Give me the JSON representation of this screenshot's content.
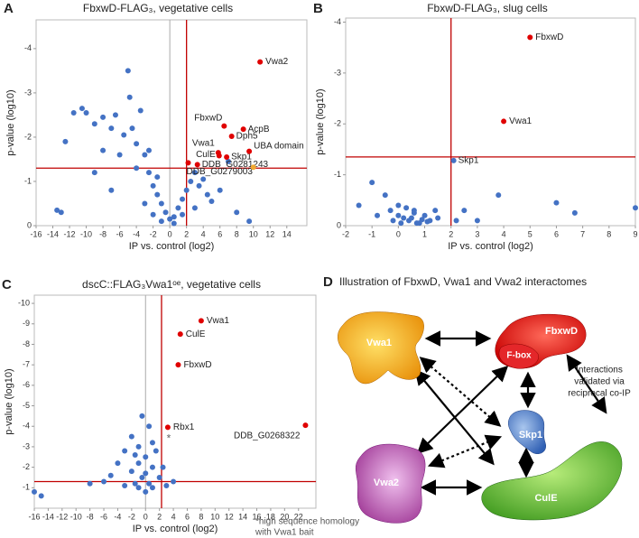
{
  "chart_data": [
    {
      "type": "scatter",
      "panel": "A",
      "title": "FbxwD-FLAG₃, vegetative cells",
      "x_label": "IP vs. control (log2)",
      "y_label": "p-value (log10)",
      "xlim": [
        -16,
        16.4
      ],
      "ylim": [
        0,
        -4.65
      ],
      "xticks": [
        -16,
        -14,
        -12,
        -10,
        -8,
        -6,
        -4,
        -2,
        0,
        2,
        4,
        6,
        8,
        10,
        12,
        14
      ],
      "yticks": [
        0,
        -1,
        -2,
        -3,
        -4
      ],
      "threshold_x": 2,
      "threshold_y": -1.3,
      "threshold_color": "#c00000",
      "zero_line": true,
      "series": [
        {
          "color": "#4472c4",
          "x": [
            -13.5,
            -13,
            -12.5,
            -11.5,
            -10.5,
            -10,
            -9,
            -8,
            -7,
            -6.5,
            -5.5,
            -5,
            -4.8,
            -4.5,
            -4,
            -3.5,
            -3,
            -2.5,
            -2,
            -1.5,
            -1,
            -0.5,
            0,
            0.5,
            1,
            1.5,
            2,
            2.5,
            3,
            3.5,
            4,
            4.5,
            5,
            6,
            7,
            -3,
            -2,
            -1,
            0.5,
            1.5,
            -4,
            -6,
            -8,
            -2.5,
            -1.5,
            3,
            8,
            9.5,
            -7,
            -9
          ],
          "values": [
            -0.35,
            -0.3,
            -1.9,
            -2.55,
            -2.65,
            -2.55,
            -2.3,
            -2.45,
            -2.2,
            -2.5,
            -2.05,
            -3.5,
            -2.9,
            -2.2,
            -1.85,
            -2.6,
            -1.6,
            -1.2,
            -0.9,
            -0.7,
            -0.5,
            -0.3,
            -0.15,
            -0.2,
            -0.4,
            -0.6,
            -0.8,
            -1.0,
            -1.2,
            -0.9,
            -1.05,
            -0.7,
            -0.55,
            -0.8,
            -1.45,
            -0.5,
            -0.25,
            -0.1,
            -0.05,
            -0.25,
            -1.3,
            -1.6,
            -1.7,
            -1.7,
            -1.1,
            -0.4,
            -0.3,
            -0.1,
            -0.8,
            -1.2
          ]
        },
        {
          "color": "#e00000",
          "x": [
            10.8,
            6.5,
            8.8,
            7.4,
            5.8,
            5.9,
            6.8,
            9.5,
            3.3,
            2.2
          ],
          "values": [
            -3.7,
            -2.25,
            -2.18,
            -2.02,
            -1.65,
            -1.58,
            -1.55,
            -1.68,
            -1.38,
            -1.42
          ],
          "labels": [
            "Vwa2",
            "FbxwD",
            "AcpB",
            "Dph5",
            "Vwa1",
            "CulE",
            "Skp1",
            "UBA domain",
            "DDB_G0281243",
            "DDB_G0279003"
          ]
        },
        {
          "color": "#f0a830",
          "x": [
            10
          ],
          "values": [
            -1.32
          ]
        }
      ]
    },
    {
      "type": "scatter",
      "panel": "B",
      "title": "FbxwD-FLAG₃, slug cells",
      "x_label": "IP vs. control (log2)",
      "y_label": "p-value (log10)",
      "xlim": [
        -2,
        9
      ],
      "ylim": [
        0,
        -4.08
      ],
      "xticks": [
        -2,
        -1,
        0,
        1,
        2,
        3,
        4,
        5,
        6,
        7,
        8,
        9
      ],
      "yticks": [
        0,
        -1,
        -2,
        -3,
        -4
      ],
      "threshold_x": 2,
      "threshold_y": -1.35,
      "threshold_color": "#c00000",
      "zero_line": false,
      "series": [
        {
          "color": "#4472c4",
          "x": [
            -1.5,
            -1,
            -0.5,
            -0.3,
            0,
            0.2,
            0.4,
            0.6,
            0.8,
            1,
            1.2,
            1.4,
            0.1,
            0.3,
            0.5,
            0.7,
            0.9,
            1.1,
            -0.2,
            0,
            0.6,
            1.5,
            2.5,
            3.8,
            6,
            6.7,
            9,
            2.2,
            3,
            -0.8
          ],
          "values": [
            -0.4,
            -0.85,
            -0.6,
            -0.3,
            -0.2,
            -0.15,
            -0.1,
            -0.25,
            -0.05,
            -0.2,
            -0.1,
            -0.3,
            -0.05,
            -0.35,
            -0.15,
            -0.05,
            -0.12,
            -0.08,
            -0.1,
            -0.4,
            -0.3,
            -0.15,
            -0.3,
            -0.6,
            -0.45,
            -0.25,
            -0.35,
            -0.1,
            -0.1,
            -0.2
          ]
        },
        {
          "color": "#4472c4",
          "x": [
            2.1
          ],
          "values": [
            -1.28
          ],
          "labels": [
            "Skp1"
          ]
        },
        {
          "color": "#e00000",
          "x": [
            5,
            4
          ],
          "values": [
            -3.7,
            -2.05
          ],
          "labels": [
            "FbxwD",
            "Vwa1"
          ]
        }
      ]
    },
    {
      "type": "scatter",
      "panel": "C",
      "title": "dscC::FLAG₃Vwa1ᵒᵉ, vegetative cells",
      "x_label": "IP vs. control (log2)",
      "y_label": "p-value (log10)",
      "xlim": [
        -16,
        24.5
      ],
      "ylim": [
        0,
        -10.4
      ],
      "xticks": [
        -16,
        -14,
        -12,
        -10,
        -8,
        -6,
        -4,
        -2,
        0,
        2,
        4,
        6,
        8,
        10,
        12,
        14,
        16,
        18,
        20,
        22
      ],
      "yticks": [
        -1,
        -2,
        -3,
        -4,
        -5,
        -6,
        -7,
        -8,
        -9,
        -10
      ],
      "threshold_x": 2.3,
      "threshold_y": -1.3,
      "threshold_color": "#c00000",
      "zero_line": true,
      "annotation": "*",
      "footnote": [
        "*high sequence homology",
        "with Vwa1 bait"
      ],
      "series": [
        {
          "color": "#4472c4",
          "x": [
            -16,
            -15,
            -5,
            -4,
            -3,
            -2,
            -1,
            0,
            1,
            1,
            -0.5,
            0.5,
            -1.5,
            0,
            2,
            2.5,
            3,
            -2,
            -1,
            0.5,
            -0.5,
            -1.5,
            1.5,
            -6,
            -3,
            4,
            -8,
            0,
            1,
            -1
          ],
          "values": [
            -0.8,
            -0.6,
            -1.6,
            -2.2,
            -2.8,
            -3.5,
            -3,
            -2.5,
            -2,
            -3.2,
            -1.5,
            -1.2,
            -1.2,
            -0.8,
            -1.5,
            -2,
            -1.1,
            -1.8,
            -2.2,
            -4,
            -4.5,
            -2.6,
            -2.8,
            -1.3,
            -1.1,
            -1.3,
            -1.2,
            -1.7,
            -1.0,
            -1.0
          ]
        },
        {
          "color": "#e00000",
          "x": [
            8,
            5,
            4.7,
            3.2,
            23
          ],
          "values": [
            -9.15,
            -8.5,
            -7,
            -3.95,
            -4.05
          ],
          "labels": [
            "Vwa1",
            "CulE",
            "FbxwD",
            "Rbx1",
            "DDB_G0268322"
          ]
        }
      ]
    }
  ],
  "diagram": {
    "panel": "D",
    "title": "Illustration of FbxwD, Vwa1 and Vwa2 interactomes",
    "nodes": [
      {
        "label": "Vwa1"
      },
      {
        "label": "FbxwD"
      },
      {
        "label": "F-box"
      },
      {
        "label": "Skp1"
      },
      {
        "label": "Vwa2"
      },
      {
        "label": "CulE"
      }
    ],
    "note": [
      "Interactions",
      "validated via",
      "reciprocal co-IP"
    ]
  }
}
